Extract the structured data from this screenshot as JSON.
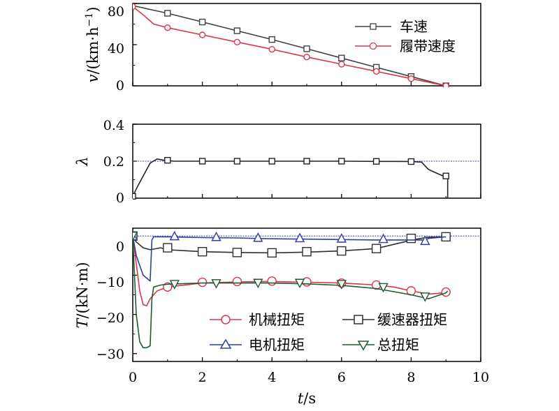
{
  "chart_data": [
    {
      "type": "line",
      "panel": "speed",
      "ylabel": "v/(km·h⁻¹)",
      "ylabel_italic": "v",
      "ylabel_rest": "/(km·h",
      "ylabel_sup": "−1",
      "ylabel_close": ")",
      "xlim": [
        0,
        10
      ],
      "ylim": [
        0,
        80
      ],
      "yticks": [
        "0",
        "40",
        "80"
      ],
      "ytick_values": [
        0,
        40,
        80
      ],
      "legend_position": "top-right",
      "series": [
        {
          "name": "车速",
          "color": "#404040",
          "marker": "square",
          "x": [
            0,
            1,
            2,
            3,
            4,
            5,
            6,
            7,
            8,
            9
          ],
          "y": [
            78,
            70.5,
            62,
            53.5,
            45,
            36,
            27,
            18,
            9,
            0
          ],
          "markers_x": [
            1,
            2,
            3,
            4,
            5,
            6,
            7,
            8,
            9
          ],
          "markers_y": [
            70.5,
            62,
            53.5,
            45,
            36,
            27,
            18,
            9,
            0
          ]
        },
        {
          "name": "履带速度",
          "color": "#d9364b",
          "marker": "circle",
          "x": [
            0,
            0.3,
            0.6,
            1,
            2,
            3,
            4,
            5,
            6,
            7,
            8,
            9
          ],
          "y": [
            77,
            69,
            60,
            56.5,
            49.5,
            42.5,
            35.5,
            28,
            21,
            14,
            7,
            0
          ],
          "markers_x": [
            0,
            1,
            2,
            3,
            4,
            5,
            6,
            7,
            8,
            9
          ],
          "markers_y": [
            77,
            56.5,
            49.5,
            42.5,
            35.5,
            28,
            21,
            14,
            7,
            0
          ]
        }
      ]
    },
    {
      "type": "line",
      "panel": "slip",
      "ylabel": "λ",
      "xlim": [
        0,
        10
      ],
      "ylim": [
        0,
        0.4
      ],
      "yticks": [
        "0",
        "0.2",
        "0.4"
      ],
      "ytick_values": [
        0,
        0.2,
        0.4
      ],
      "reference_line": {
        "y": 0.2,
        "color": "#3344aa"
      },
      "series": [
        {
          "color": "#222222",
          "marker": "square",
          "x": [
            0,
            0.1,
            0.3,
            0.5,
            0.7,
            0.9,
            1.2,
            2,
            3,
            4,
            5,
            6,
            7,
            7.5,
            8,
            8.3,
            8.5,
            8.8,
            9.05,
            9.05
          ],
          "y": [
            0.01,
            0.05,
            0.12,
            0.19,
            0.212,
            0.205,
            0.2,
            0.2,
            0.2,
            0.2,
            0.2,
            0.2,
            0.199,
            0.199,
            0.198,
            0.195,
            0.155,
            0.13,
            0.11,
            0
          ],
          "markers_x": [
            0,
            1,
            2,
            3,
            4,
            5,
            6,
            7,
            8,
            9
          ],
          "markers_y": [
            0.01,
            0.205,
            0.2,
            0.2,
            0.2,
            0.2,
            0.2,
            0.199,
            0.198,
            0.12
          ]
        }
      ]
    },
    {
      "type": "line",
      "panel": "torque",
      "xlabel": "t/s",
      "xlabel_italic": "t",
      "xlabel_rest": "/s",
      "ylabel": "T/(kN·m)",
      "ylabel_italic": "T",
      "ylabel_rest": "/(kN·m)",
      "xlim": [
        0,
        10
      ],
      "ylim": [
        -32,
        2
      ],
      "xticks": [
        "0",
        "2",
        "4",
        "6",
        "8",
        "10"
      ],
      "xtick_values": [
        0,
        2,
        4,
        6,
        8,
        10
      ],
      "yticks": [
        "0",
        "−10",
        "−20",
        "−30"
      ],
      "ytick_values": [
        0,
        -10,
        -20,
        -30
      ],
      "reference_line": {
        "y": 0,
        "color": "#3344aa"
      },
      "legend_position": "bottom-right",
      "series": [
        {
          "name": "机械扭矩",
          "color": "#d9364b",
          "marker": "circle",
          "x": [
            0,
            0.1,
            0.2,
            0.3,
            0.4,
            0.5,
            0.7,
            1,
            2,
            3,
            4,
            5,
            6,
            7,
            7.5,
            8,
            8.5,
            9,
            9.05
          ],
          "y": [
            0,
            -7,
            -14,
            -17.5,
            -17.8,
            -16,
            -14,
            -13,
            -12,
            -11.7,
            -11.6,
            -11.8,
            -12,
            -12.5,
            -13,
            -14,
            -14.8,
            -14.5,
            -14
          ],
          "markers_x": [
            0,
            1,
            2,
            3,
            4,
            5,
            6,
            7,
            8,
            9
          ],
          "markers_y": [
            0,
            -13,
            -11.8,
            -11.6,
            -11.5,
            -11.7,
            -12,
            -12.5,
            -14,
            -14.3
          ]
        },
        {
          "name": "缓速器扭矩",
          "color": "#303030",
          "marker": "square",
          "x": [
            0,
            0.1,
            0.3,
            0.5,
            0.8,
            1,
            2,
            3,
            4,
            5,
            6,
            7,
            7.8,
            8,
            8.5,
            9,
            9.05
          ],
          "y": [
            0,
            -1.5,
            -3,
            -3.5,
            -3,
            -3.5,
            -4,
            -4.2,
            -4.3,
            -4.1,
            -3.8,
            -3.2,
            -1.5,
            -1,
            -0.3,
            -0.2,
            -0.2
          ],
          "markers_x": [
            0,
            1,
            2,
            3,
            4,
            5,
            6,
            7,
            8,
            9
          ],
          "markers_y": [
            0,
            -3,
            -4,
            -4.2,
            -4.3,
            -4,
            -3.8,
            -3.2,
            -0.6,
            -0.2
          ]
        },
        {
          "name": "电机扭矩",
          "color": "#2e3f9e",
          "marker": "triangle-up",
          "x": [
            0,
            0.1,
            0.3,
            0.5,
            0.55,
            0.6,
            1,
            2,
            3,
            4,
            5,
            6,
            7,
            8,
            8.4,
            8.5,
            9
          ],
          "y": [
            0,
            -5,
            -10,
            -11.5,
            -1,
            -0.2,
            -0.2,
            -0.4,
            -0.5,
            -0.7,
            -0.8,
            -0.9,
            -1,
            -1,
            -1,
            -0.6,
            -0.2
          ],
          "markers_x": [
            0,
            1.2,
            2.4,
            3.6,
            4.8,
            6,
            7.2,
            8.4
          ],
          "markers_y": [
            0,
            0,
            -0.2,
            -0.4,
            -0.5,
            -0.6,
            -0.7,
            -1.2
          ]
        },
        {
          "name": "总扭矩",
          "color": "#1e5a2f",
          "marker": "triangle-down",
          "x": [
            0,
            0.05,
            0.1,
            0.2,
            0.3,
            0.4,
            0.5,
            0.55,
            0.6,
            0.8,
            1,
            2,
            3,
            4,
            5,
            6,
            7,
            8,
            8.5,
            9,
            9.05
          ],
          "y": [
            0,
            -10,
            -20,
            -27,
            -28.5,
            -28.5,
            -28,
            -16,
            -13,
            -12.5,
            -12.3,
            -12,
            -12,
            -12,
            -12.2,
            -12.6,
            -13.4,
            -15,
            -16,
            -14.5,
            -14
          ],
          "markers_x": [
            0,
            1.2,
            2.4,
            3.6,
            4.8,
            6,
            7.2,
            8.4
          ],
          "markers_y": [
            0,
            -12.3,
            -12.1,
            -12,
            -12,
            -12.3,
            -13.1,
            -15.5
          ]
        }
      ]
    }
  ]
}
